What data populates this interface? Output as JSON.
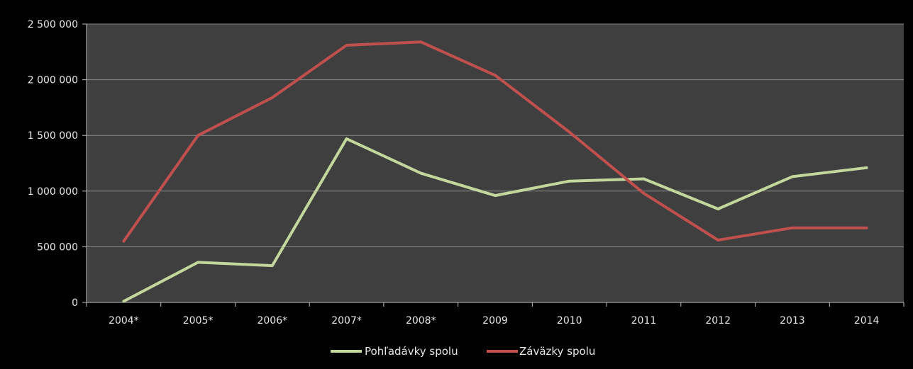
{
  "chart_data": {
    "type": "line",
    "title": "",
    "xlabel": "",
    "ylabel": "",
    "categories": [
      "2004*",
      "2005*",
      "2006*",
      "2007*",
      "2008*",
      "2009",
      "2010",
      "2011",
      "2012",
      "2013",
      "2014"
    ],
    "ylim": [
      0,
      2500000
    ],
    "yticks": [
      0,
      500000,
      1000000,
      1500000,
      2000000,
      2500000
    ],
    "ytick_labels": [
      "0",
      "500 000",
      "1 000 000",
      "1 500 000",
      "2 000 000",
      "2 500 000"
    ],
    "grid": true,
    "legend_position": "bottom",
    "series": [
      {
        "name": "Pohľadávky spolu",
        "color": "#c3d69b",
        "values": [
          10000,
          360000,
          330000,
          1470000,
          1160000,
          960000,
          1090000,
          1110000,
          840000,
          1130000,
          1210000
        ]
      },
      {
        "name": "Záväzky spolu",
        "color": "#c0504d",
        "values": [
          550000,
          1500000,
          1840000,
          2310000,
          2340000,
          2040000,
          1530000,
          980000,
          560000,
          670000,
          670000
        ]
      }
    ],
    "colors": {
      "page_background": "#000000",
      "plot_background": "#3f3f3f",
      "gridline": "#8a8a8a",
      "axis": "#bfbfbf",
      "text": "#e6e6e6"
    }
  }
}
